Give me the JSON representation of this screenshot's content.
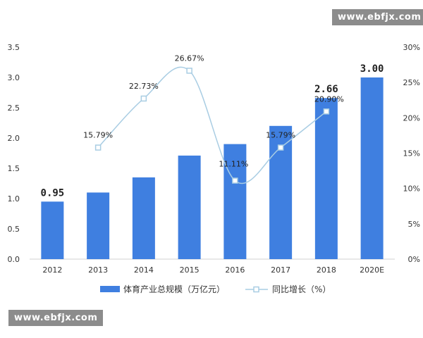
{
  "watermark": {
    "top_text": "www.ebfjx.com",
    "bottom_text": "www.ebfjx.com"
  },
  "chart_data": {
    "type": "bar",
    "title": "",
    "xlabel": "",
    "ylabel": "",
    "categories": [
      "2012",
      "2013",
      "2014",
      "2015",
      "2016",
      "2017",
      "2018",
      "2020E"
    ],
    "series": [
      {
        "name": "体育产业总规模（万亿元）",
        "type": "bar",
        "axis": "left",
        "color": "#3f7fe0",
        "values": [
          0.95,
          1.1,
          1.35,
          1.71,
          1.9,
          2.2,
          2.66,
          3.0
        ],
        "data_labels": [
          "0.95",
          null,
          null,
          null,
          null,
          null,
          "2.66",
          "3.00"
        ]
      },
      {
        "name": "同比增长（%）",
        "type": "line",
        "axis": "right",
        "color": "#a9cde3",
        "marker": "square",
        "values": [
          null,
          15.79,
          22.73,
          26.67,
          11.11,
          15.79,
          20.9,
          null
        ],
        "data_labels": [
          null,
          "15.79%",
          "22.73%",
          "26.67%",
          "11.11%",
          "15.79%",
          "20.90%",
          null
        ]
      }
    ],
    "left_axis": {
      "min": 0,
      "max": 3.5,
      "ticks": [
        "0.0",
        "0.5",
        "1.0",
        "1.5",
        "2.0",
        "2.5",
        "3.0",
        "3.5"
      ]
    },
    "right_axis": {
      "min": 0,
      "max": 30,
      "ticks": [
        "0%",
        "5%",
        "10%",
        "15%",
        "20%",
        "25%",
        "30%"
      ]
    },
    "grid": false,
    "legend": "bottom"
  }
}
